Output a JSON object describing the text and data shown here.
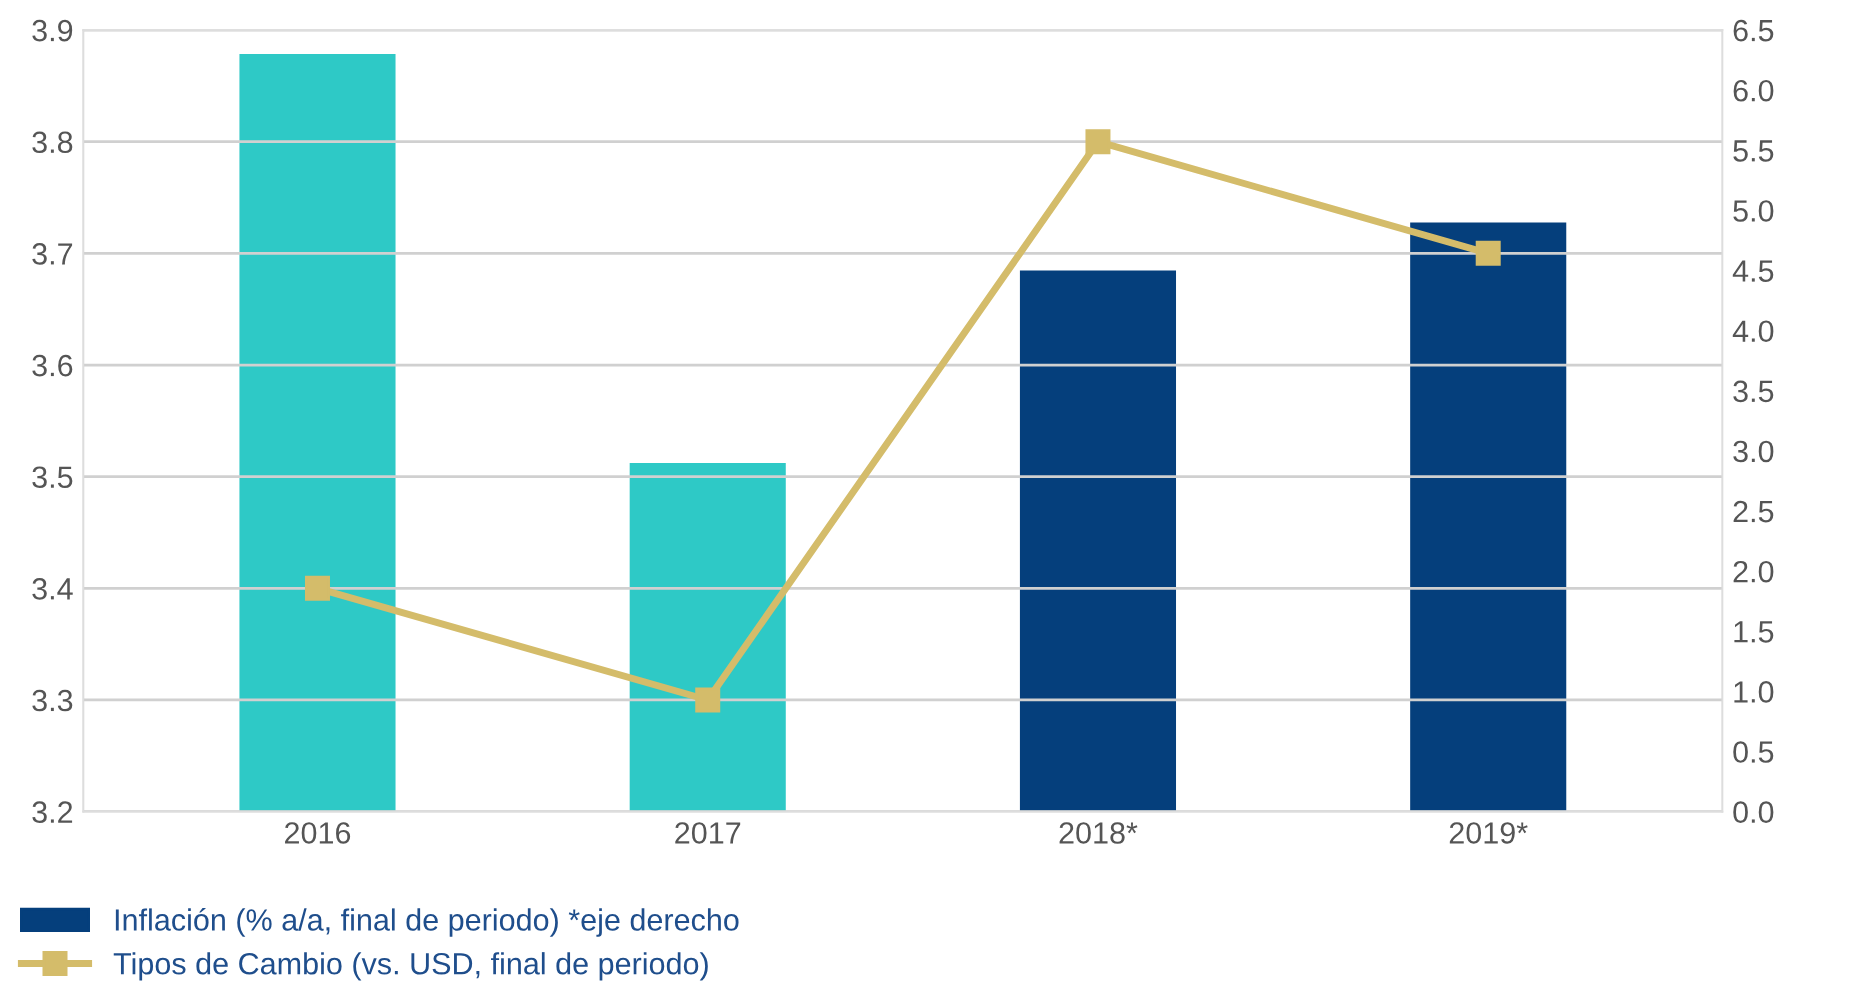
{
  "chart_data": {
    "type": "bar",
    "categories": [
      "2016",
      "2017",
      "2018*",
      "2019*"
    ],
    "series": [
      {
        "name": "Inflación (% a/a, final de periodo) *eje derecho",
        "axis": "y2",
        "color": "#053f7c",
        "colors": [
          "#2ec9c6",
          "#2ec9c6",
          "#053f7c",
          "#053f7c"
        ],
        "values": [
          6.3,
          2.9,
          4.5,
          4.9
        ]
      },
      {
        "name": "Tipos de Cambio (vs. USD, final de periodo)",
        "type": "line",
        "color": "#d4bc6a",
        "marker": "square",
        "values": [
          3.4,
          3.3,
          3.8,
          3.7
        ]
      }
    ],
    "ylim": [
      3.2,
      3.9
    ],
    "yticks": [
      3.2,
      3.3,
      3.4,
      3.5,
      3.6,
      3.7,
      3.8,
      3.9
    ],
    "y2lim": [
      0,
      6.5
    ],
    "y2ticks": [
      {
        "value": 0,
        "label": "0.0"
      },
      0.5,
      {
        "value": 1,
        "label": "1.0"
      },
      1.5,
      {
        "value": 2,
        "label": "2.0"
      },
      2.5,
      {
        "value": 3,
        "label": "3.0"
      },
      3.5,
      {
        "value": 4,
        "label": "4.0"
      },
      4.5,
      {
        "value": 5,
        "label": "5.0"
      },
      5.5,
      {
        "value": 6,
        "label": "6.0"
      },
      6.5
    ],
    "grid": "y",
    "legend": "bottom left"
  }
}
